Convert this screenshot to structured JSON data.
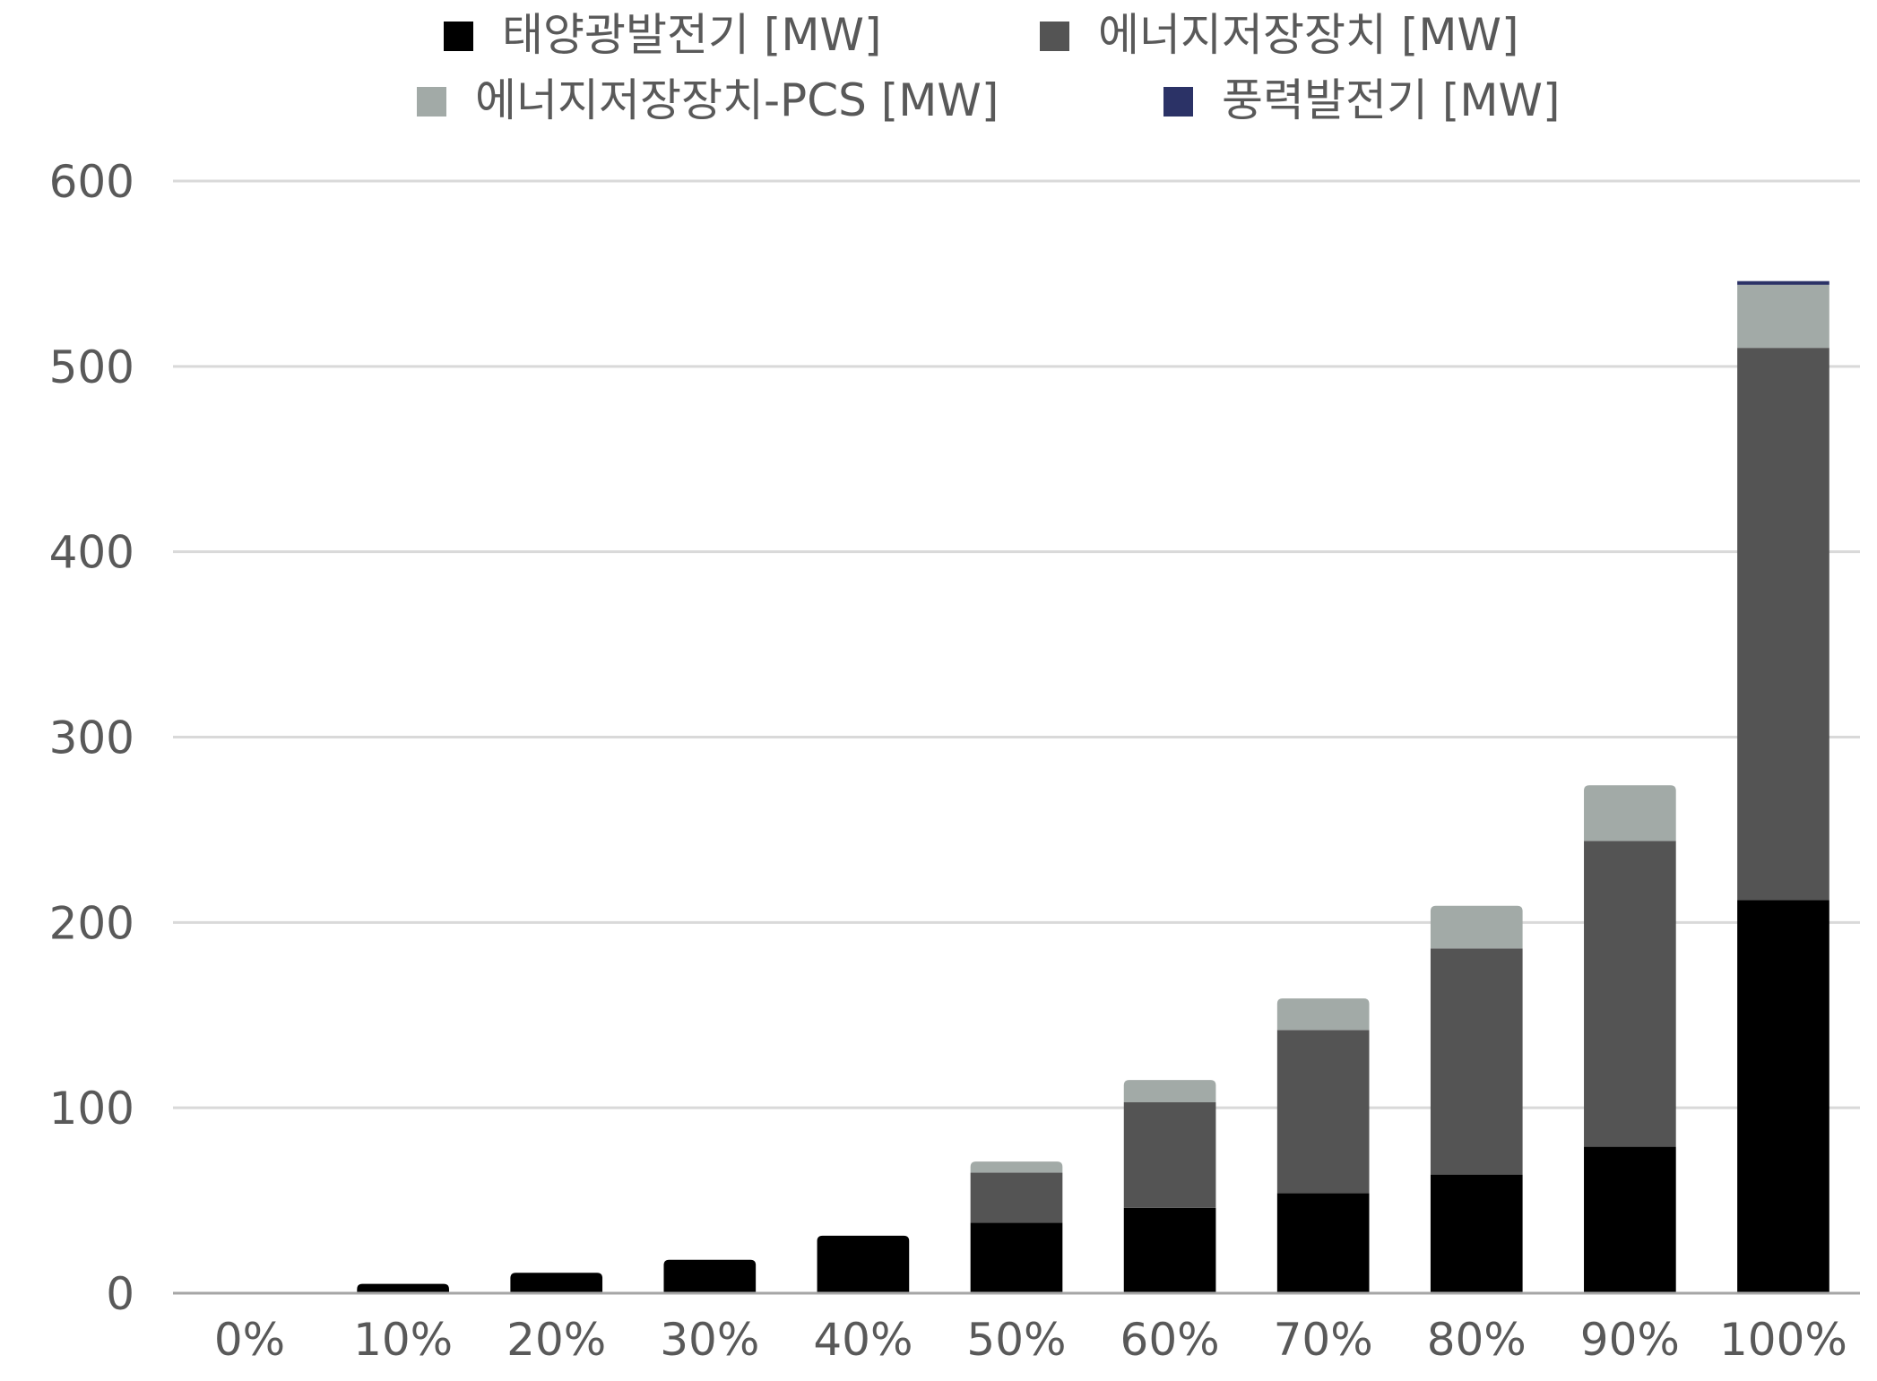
{
  "chart_data": {
    "type": "bar",
    "stacked": true,
    "title": "",
    "xlabel": "",
    "ylabel": "",
    "categories": [
      "0%",
      "10%",
      "20%",
      "30%",
      "40%",
      "50%",
      "60%",
      "70%",
      "80%",
      "90%",
      "100%"
    ],
    "ylim": [
      0,
      600
    ],
    "yticks": [
      "0",
      "100",
      "200",
      "300",
      "400",
      "500",
      "600"
    ],
    "grid": true,
    "legend_position": "top",
    "series": [
      {
        "name": "태양광발전기 [MW]",
        "color": "#000000",
        "values": [
          0,
          5,
          11,
          18,
          31,
          38,
          46,
          54,
          64,
          79,
          212
        ]
      },
      {
        "name": "에너지저장장치 [MW]",
        "color": "#545454",
        "values": [
          0,
          0,
          0,
          0,
          0,
          27,
          57,
          88,
          122,
          165,
          298
        ]
      },
      {
        "name": "에너지저장장치-PCS [MW]",
        "color": "#a2aaa7",
        "values": [
          0,
          0,
          0,
          0,
          0,
          6,
          12,
          17,
          23,
          30,
          34
        ]
      },
      {
        "name": "풍력발전기 [MW]",
        "color": "#2b3266",
        "values": [
          0,
          0,
          0,
          0,
          0,
          0,
          0,
          0,
          0,
          0,
          2
        ]
      }
    ]
  }
}
